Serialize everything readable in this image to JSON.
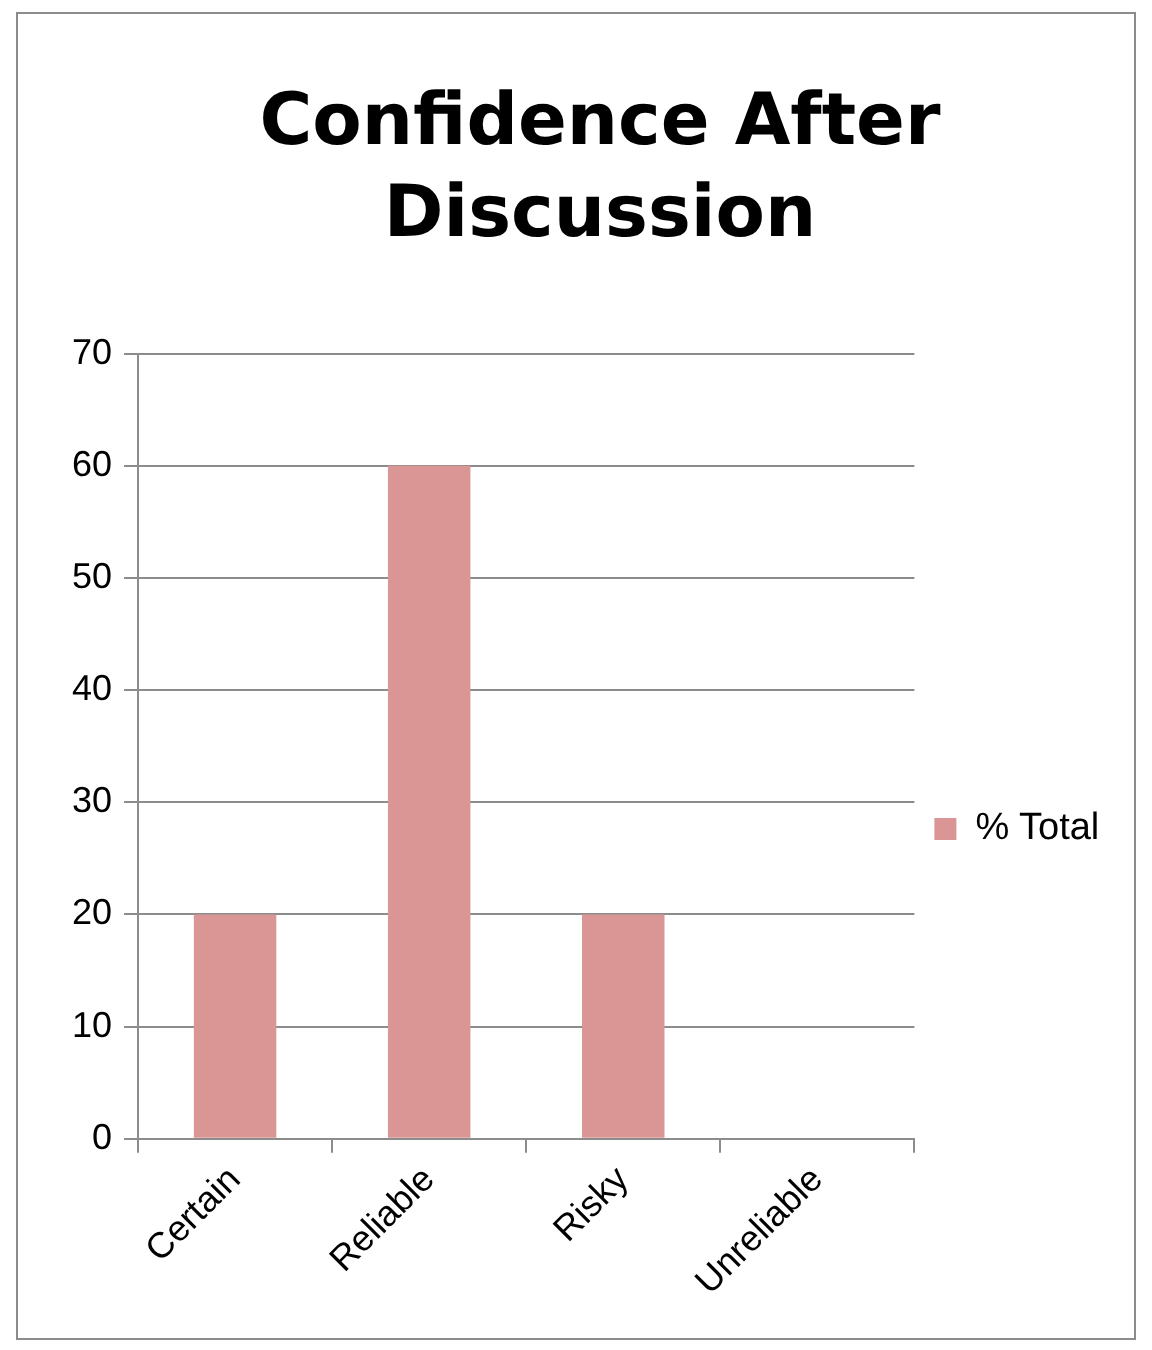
{
  "chart_data": {
    "type": "bar",
    "title": "Confidence After Discussion",
    "categories": [
      "Certain",
      "Reliable",
      "Risky",
      "Unreliable"
    ],
    "series": [
      {
        "name": "% Total",
        "color": "#d99694",
        "values": [
          20,
          60,
          20,
          0
        ]
      }
    ],
    "ylim": [
      0,
      70
    ],
    "yticks": [
      0,
      10,
      20,
      30,
      40,
      50,
      60,
      70
    ],
    "grid": "y",
    "legend": "right"
  }
}
